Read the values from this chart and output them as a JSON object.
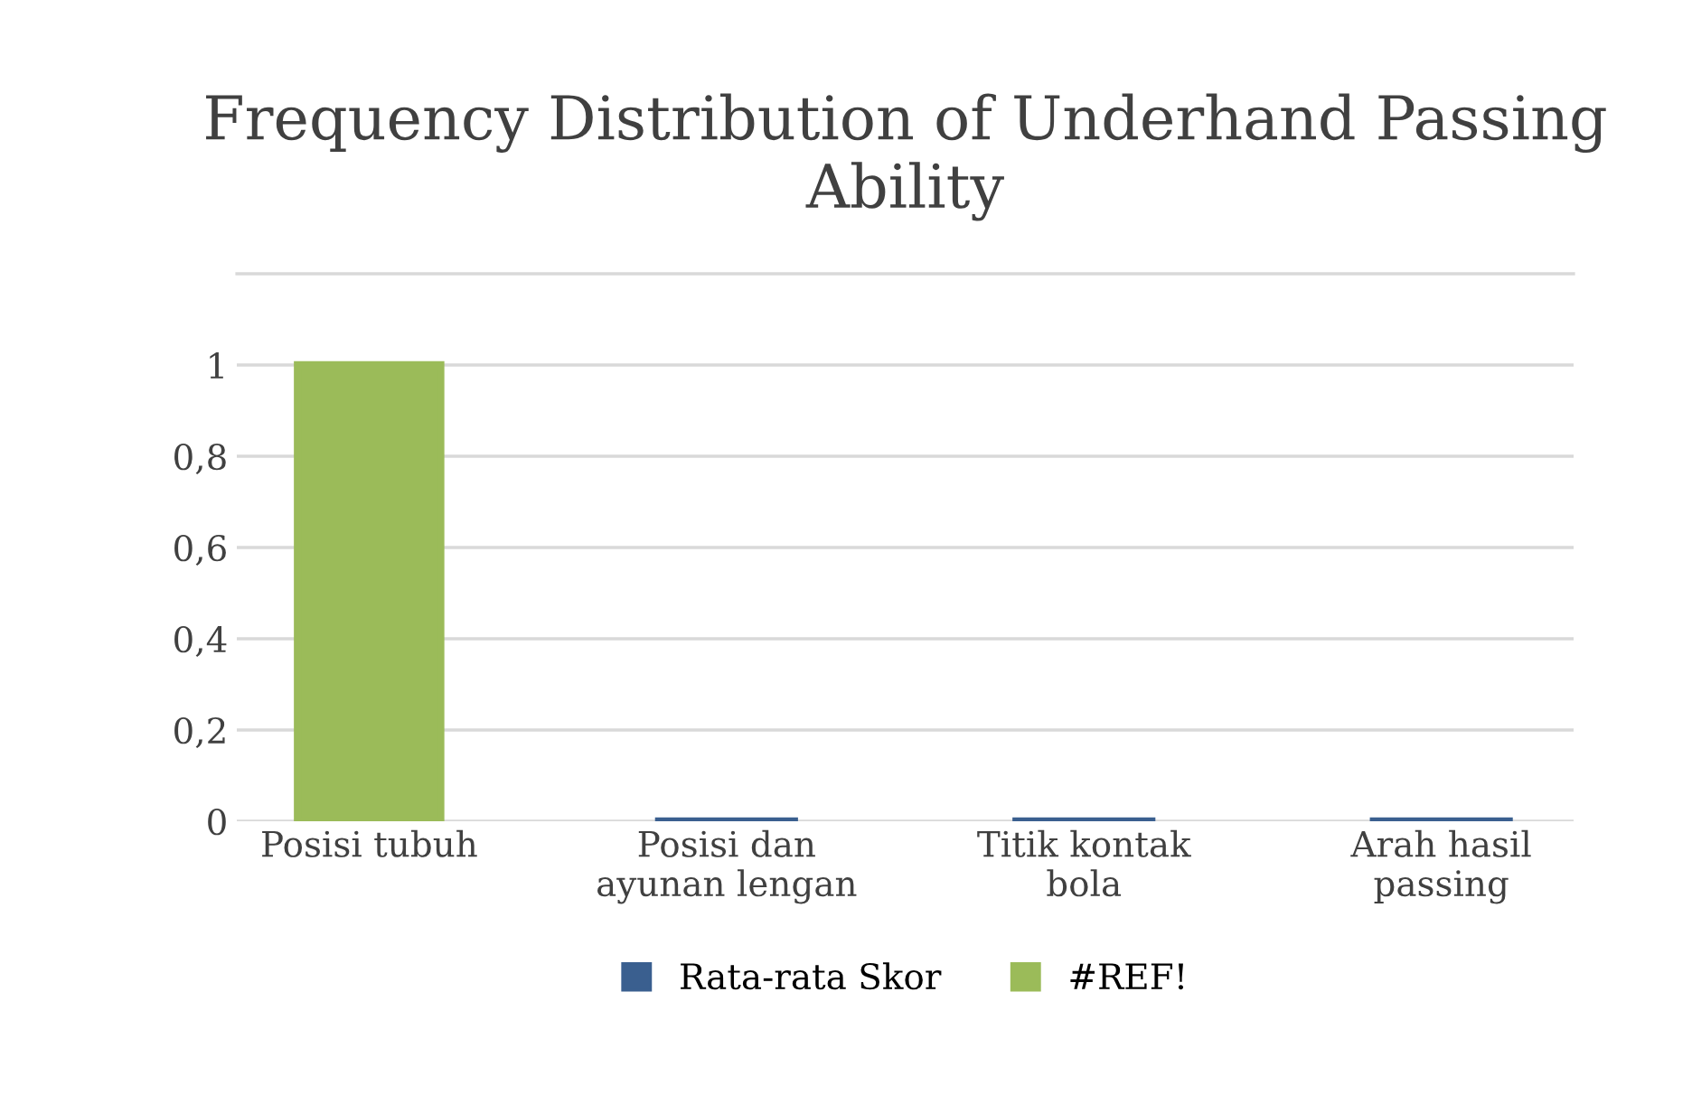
{
  "chart_data": {
    "type": "bar",
    "title": "Frequency Distribution of Underhand Passing Ability",
    "categories": [
      "Posisi tubuh",
      "Posisi dan\nayunan lengan",
      "Titik kontak\nbola",
      "Arah hasil\npassing"
    ],
    "series": [
      {
        "name": "Rata-rata Skor",
        "color": "#3a5f8f",
        "values": [
          null,
          0,
          0,
          0
        ]
      },
      {
        "name": "#REF!",
        "color": "#9bbb59",
        "values": [
          1,
          null,
          null,
          null
        ]
      }
    ],
    "ylim": [
      0,
      1.2
    ],
    "yticks": [
      0,
      {
        "value": 0.2,
        "label": "0,2"
      },
      {
        "value": 0.4,
        "label": "0,4"
      },
      {
        "value": 0.6,
        "label": "0,6"
      },
      {
        "value": 0.8,
        "label": "0,8"
      },
      1
    ],
    "grid": "y",
    "legend": "bottom"
  }
}
